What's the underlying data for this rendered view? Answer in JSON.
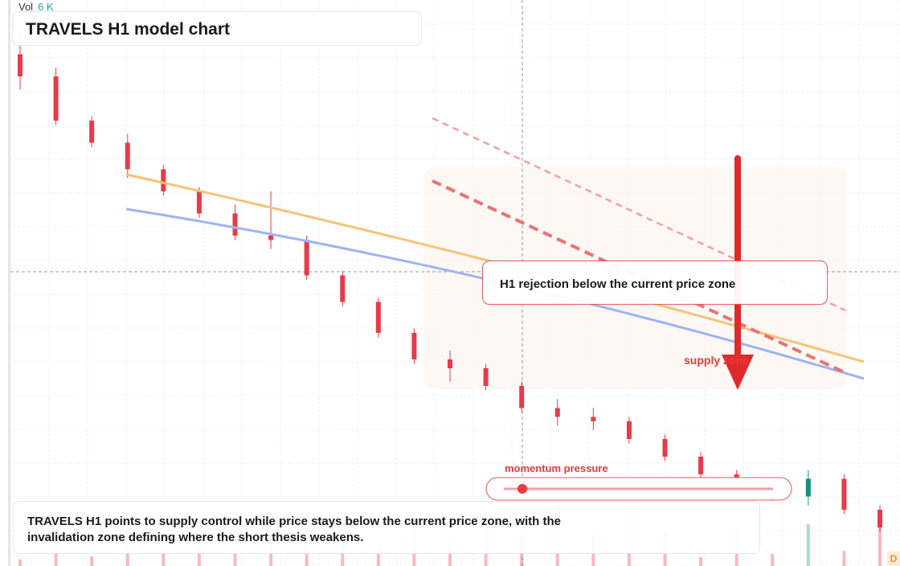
{
  "title": "TRAVELS H1 model chart",
  "volume": {
    "label": "Vol",
    "value": "6 K"
  },
  "callout": {
    "text": "H1 rejection below the current price zone"
  },
  "supply_label": "supply zone",
  "momentum_label": "momentum pressure",
  "summary": "TRAVELS H1 points to supply control while price stays below the current price zone, with the invalidation zone defining where the short thesis weakens.",
  "badge": "D",
  "colors": {
    "up": "#11917e",
    "down": "#e83a4a",
    "orange_ma": "#f7c27a",
    "blue_ma": "#9db3f2",
    "supply": "#e83a3a"
  },
  "chart_data": {
    "type": "candlestick",
    "series_note": "Price declining through the session; fast and slow moving averages sloping down; bearish channel marked in red",
    "candles": [
      {
        "o": 100.0,
        "h": 100.5,
        "l": 99.2,
        "c": 99.5
      },
      {
        "o": 99.5,
        "h": 99.7,
        "l": 98.4,
        "c": 98.5
      },
      {
        "o": 98.5,
        "h": 98.6,
        "l": 97.9,
        "c": 98.0
      },
      {
        "o": 98.0,
        "h": 98.2,
        "l": 97.2,
        "c": 97.4
      },
      {
        "o": 97.4,
        "h": 97.5,
        "l": 96.8,
        "c": 96.9
      },
      {
        "o": 96.9,
        "h": 97.0,
        "l": 96.3,
        "c": 96.4
      },
      {
        "o": 96.4,
        "h": 96.6,
        "l": 95.8,
        "c": 95.9
      },
      {
        "o": 95.9,
        "h": 96.9,
        "l": 95.6,
        "c": 95.8
      },
      {
        "o": 95.8,
        "h": 95.9,
        "l": 94.9,
        "c": 95.0
      },
      {
        "o": 95.0,
        "h": 95.1,
        "l": 94.3,
        "c": 94.4
      },
      {
        "o": 94.4,
        "h": 94.5,
        "l": 93.6,
        "c": 93.7
      },
      {
        "o": 93.7,
        "h": 93.8,
        "l": 93.0,
        "c": 93.1
      },
      {
        "o": 93.1,
        "h": 93.3,
        "l": 92.6,
        "c": 92.9
      },
      {
        "o": 92.9,
        "h": 93.0,
        "l": 92.4,
        "c": 92.5
      },
      {
        "o": 92.5,
        "h": 92.6,
        "l": 91.9,
        "c": 92.0
      },
      {
        "o": 92.0,
        "h": 92.2,
        "l": 91.6,
        "c": 91.8
      },
      {
        "o": 91.8,
        "h": 92.0,
        "l": 91.5,
        "c": 91.7
      },
      {
        "o": 91.7,
        "h": 91.8,
        "l": 91.2,
        "c": 91.3
      },
      {
        "o": 91.3,
        "h": 91.4,
        "l": 90.8,
        "c": 90.9
      },
      {
        "o": 90.9,
        "h": 91.0,
        "l": 90.4,
        "c": 90.5
      },
      {
        "o": 90.5,
        "h": 90.6,
        "l": 90.1,
        "c": 90.2
      },
      {
        "o": 90.2,
        "h": 90.3,
        "l": 89.9,
        "c": 90.0
      },
      {
        "o": 90.0,
        "h": 90.6,
        "l": 89.8,
        "c": 90.4
      },
      {
        "o": 90.4,
        "h": 90.5,
        "l": 89.6,
        "c": 89.7
      },
      {
        "o": 89.7,
        "h": 89.8,
        "l": 89.2,
        "c": 89.3
      }
    ],
    "moving_averages": [
      {
        "name": "",
        "color": "orange",
        "start": 96.3,
        "end": 88.7
      },
      {
        "name": "",
        "color": "blue",
        "start": 95.4,
        "end": 88.2
      }
    ],
    "annotations": [
      "H1 rejection below the current price zone",
      "supply zone",
      "momentum pressure"
    ],
    "grid": true
  }
}
